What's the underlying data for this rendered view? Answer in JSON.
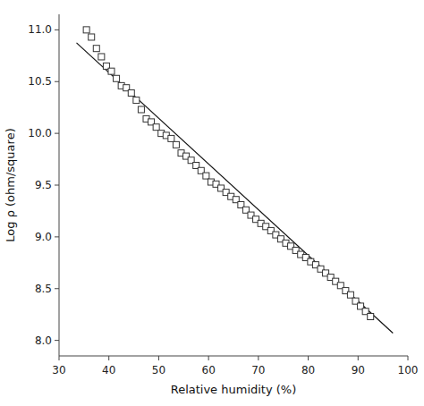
{
  "chart_data": {
    "type": "scatter",
    "xlabel": "Relative humidity (%)",
    "ylabel": "Log ρ (ohm/square)",
    "xlim": [
      30,
      100
    ],
    "ylim": [
      7.85,
      11.15
    ],
    "xticks": [
      30,
      40,
      50,
      60,
      70,
      80,
      90,
      100
    ],
    "yticks": [
      {
        "value": 8.0,
        "label": "8.0"
      },
      8.5,
      {
        "value": 9.0,
        "label": "9.0"
      },
      9.5,
      {
        "value": 10.0,
        "label": "10.0"
      },
      10.5,
      {
        "value": 11.0,
        "label": "11.0"
      }
    ],
    "grid": false,
    "series": [
      {
        "type": "line",
        "color": "#111111",
        "line_style": "solid",
        "x": [
          33.5,
          97
        ],
        "values": [
          10.875,
          8.07
        ]
      },
      {
        "type": "scatter",
        "color": "#333333",
        "marker": "square",
        "x": [
          35.5,
          36.5,
          37.5,
          38.5,
          39.5,
          40.5,
          41.5,
          42.5,
          43.5,
          44.5,
          45.5,
          46.5,
          47.5,
          48.5,
          49.5,
          50.5,
          51.5,
          52.5,
          53.5,
          54.5,
          55.5,
          56.5,
          57.5,
          58.5,
          59.5,
          60.5,
          61.5,
          62.5,
          63.5,
          64.5,
          65.5,
          66.5,
          67.5,
          68.5,
          69.5,
          70.5,
          71.5,
          72.5,
          73.5,
          74.5,
          75.5,
          76.5,
          77.5,
          78.5,
          79.5,
          80.5,
          81.5,
          82.5,
          83.5,
          84.5,
          85.5,
          86.5,
          87.5,
          88.5,
          89.5,
          90.5,
          91.5,
          92.5
        ],
        "values": [
          11.0,
          10.93,
          10.82,
          10.74,
          10.65,
          10.6,
          10.53,
          10.46,
          10.44,
          10.39,
          10.32,
          10.23,
          10.14,
          10.11,
          10.06,
          10.0,
          9.98,
          9.95,
          9.89,
          9.81,
          9.78,
          9.74,
          9.69,
          9.64,
          9.59,
          9.53,
          9.51,
          9.47,
          9.43,
          9.39,
          9.36,
          9.31,
          9.26,
          9.21,
          9.17,
          9.13,
          9.1,
          9.06,
          9.02,
          8.98,
          8.94,
          8.91,
          8.87,
          8.83,
          8.8,
          8.76,
          8.73,
          8.69,
          8.65,
          8.61,
          8.57,
          8.53,
          8.48,
          8.44,
          8.38,
          8.33,
          8.28,
          8.23
        ]
      }
    ]
  }
}
